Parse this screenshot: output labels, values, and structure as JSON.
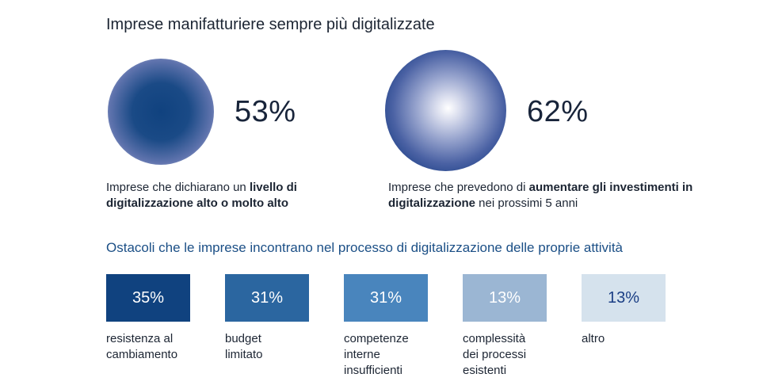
{
  "title": "Imprese manifatturiere sempre più digitalizzate",
  "highlights": [
    {
      "value": "53%",
      "text_before": "Imprese che dichiarano un ",
      "text_bold": "livello di digitalizzazione alto o molto alto",
      "text_after": ""
    },
    {
      "value": "62%",
      "text_before": "Imprese che prevedono di ",
      "text_bold": "aumentare gli investimenti in digitalizzazione",
      "text_after": " nei prossimi 5 anni"
    }
  ],
  "colors": {
    "title": "#1c2533",
    "subtitle": "#1b4f86",
    "bars": [
      "#10427f",
      "#2b66a0",
      "#4985bd",
      "#9bb6d3",
      "#d5e2ed"
    ],
    "bar_text": [
      "#ffffff",
      "#ffffff",
      "#ffffff",
      "#ffffff",
      "#1b3f85"
    ]
  },
  "chart_data": {
    "type": "bar",
    "title": "Ostacoli che le imprese incontrano nel processo di digitalizzazione delle proprie attività",
    "categories": [
      "resistenza al cambiamento",
      "budget limitato",
      "competenze interne insufficienti",
      "complessità dei processi esistenti",
      "altro"
    ],
    "category_lines": [
      [
        "resistenza al",
        "cambiamento"
      ],
      [
        "budget",
        "limitato"
      ],
      [
        "competenze",
        "interne",
        "insufficienti"
      ],
      [
        "complessità",
        "dei processi",
        "esistenti"
      ],
      [
        "altro"
      ]
    ],
    "values": [
      35,
      31,
      31,
      13,
      13
    ],
    "value_labels": [
      "35%",
      "31%",
      "31%",
      "13%",
      "13%"
    ],
    "unit": "%",
    "grid": false,
    "legend": "none"
  }
}
